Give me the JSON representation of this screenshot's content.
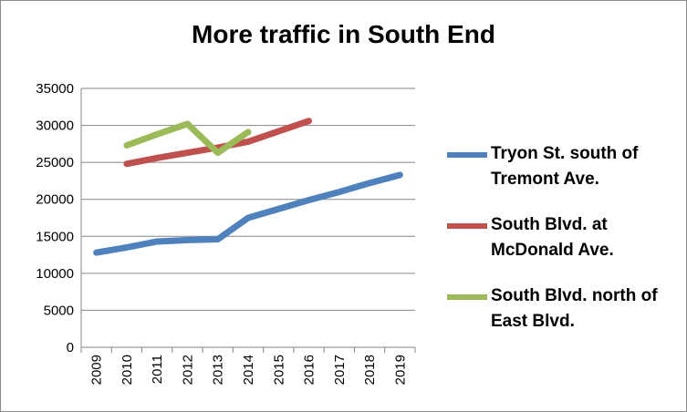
{
  "chart_data": {
    "type": "line",
    "title": "More traffic in South End",
    "xlabel": "",
    "ylabel": "",
    "categories": [
      "2009",
      "2010",
      "2011",
      "2012",
      "2013",
      "2014",
      "2015",
      "2016",
      "2017",
      "2018",
      "2019"
    ],
    "ylim": [
      0,
      35000
    ],
    "yticks": [
      0,
      5000,
      10000,
      15000,
      20000,
      25000,
      30000,
      35000
    ],
    "grid": "horizontal",
    "legend_position": "right",
    "series": [
      {
        "name": "Tryon St. south of Tremont Ave.",
        "color": "#4f81bd",
        "values": [
          12800,
          13500,
          14300,
          14500,
          14600,
          17500,
          18700,
          19900,
          21000,
          22200,
          23300
        ]
      },
      {
        "name": "South Blvd. at McDonald Ave.",
        "color": "#c0504d",
        "values": [
          null,
          24800,
          25600,
          26300,
          27000,
          27800,
          29200,
          30600,
          null,
          null,
          null
        ]
      },
      {
        "name": "South Blvd. north of East Blvd.",
        "color": "#9bbb59",
        "values": [
          null,
          27300,
          28800,
          30200,
          26300,
          29100,
          null,
          null,
          null,
          null,
          null
        ]
      }
    ]
  }
}
